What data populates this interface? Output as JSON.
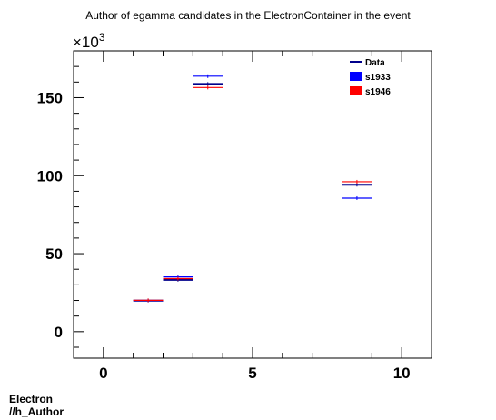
{
  "chart_data": {
    "type": "scatter",
    "title": "Author of egamma candidates in the ElectronContainer in the event",
    "xlabel": "",
    "ylabel": "",
    "y_multiplier_label": "×10",
    "y_multiplier_exponent": "3",
    "xlim": [
      -1,
      11
    ],
    "ylim": [
      -17,
      180
    ],
    "y_unit_scale": 1000,
    "x_ticks": [
      0,
      5,
      10
    ],
    "y_ticks": [
      0,
      50,
      100,
      150
    ],
    "legend": {
      "position": "top-right",
      "entries": [
        {
          "name": "Data",
          "style": "line",
          "color": "#00008b"
        },
        {
          "name": "s1933",
          "style": "box",
          "color": "#0000ff"
        },
        {
          "name": "s1946",
          "style": "box",
          "color": "#ff0000"
        }
      ]
    },
    "series": [
      {
        "name": "Data",
        "color": "#00008b",
        "points": [
          {
            "x": [
              1,
              2
            ],
            "y": 19.9
          },
          {
            "x": [
              2,
              3
            ],
            "y": 33.2
          },
          {
            "x": [
              3,
              4
            ],
            "y": 158.8
          },
          {
            "x": [
              8,
              9
            ],
            "y": 94.2
          }
        ]
      },
      {
        "name": "s1933",
        "color": "#0000ff",
        "points": [
          {
            "x": [
              1,
              2
            ],
            "y": 20.0
          },
          {
            "x": [
              2,
              3
            ],
            "y": 35.1
          },
          {
            "x": [
              3,
              4
            ],
            "y": 163.8
          },
          {
            "x": [
              8,
              9
            ],
            "y": 85.6
          }
        ]
      },
      {
        "name": "s1946",
        "color": "#ff0000",
        "points": [
          {
            "x": [
              1,
              2
            ],
            "y": 20.1
          },
          {
            "x": [
              2,
              3
            ],
            "y": 34.0
          },
          {
            "x": [
              3,
              4
            ],
            "y": 156.5
          },
          {
            "x": [
              8,
              9
            ],
            "y": 96.1
          }
        ]
      }
    ],
    "grid": false
  },
  "footer": {
    "line1": "Electron",
    "line2": "//h_Author"
  }
}
